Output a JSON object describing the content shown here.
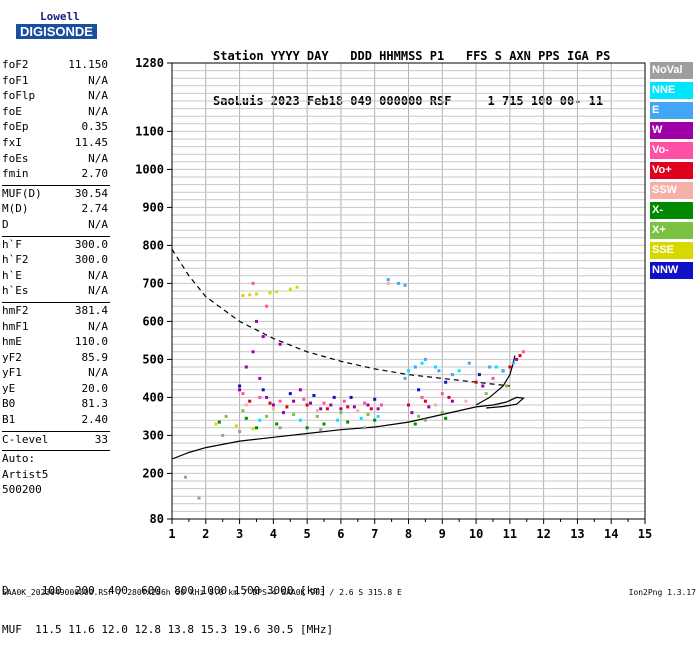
{
  "logo": {
    "maker": "Lowell",
    "product": "DIGISONDE"
  },
  "header": {
    "line1": "Station YYYY DAY   DDD HHMMSS P1   FFS S AXN PPS IGA PS",
    "line2": "SaoLuis 2023 Feb18 049 000000 RSF     1 715 100 00- 11"
  },
  "params_a": [
    {
      "k": "foF2",
      "v": "11.150"
    },
    {
      "k": "foF1",
      "v": "N/A"
    },
    {
      "k": "foFlp",
      "v": "N/A"
    },
    {
      "k": "foE",
      "v": "N/A"
    },
    {
      "k": "foEp",
      "v": "0.35"
    },
    {
      "k": "fxI",
      "v": "11.45"
    },
    {
      "k": "foEs",
      "v": "N/A"
    },
    {
      "k": "fmin",
      "v": "2.70"
    }
  ],
  "params_b": [
    {
      "k": "MUF(D)",
      "v": "30.54"
    },
    {
      "k": "M(D)",
      "v": "2.74"
    },
    {
      "k": "D",
      "v": "N/A"
    }
  ],
  "params_c": [
    {
      "k": "h`F",
      "v": "300.0"
    },
    {
      "k": "h`F2",
      "v": "300.0"
    },
    {
      "k": "h`E",
      "v": "N/A"
    },
    {
      "k": "h`Es",
      "v": "N/A"
    }
  ],
  "params_d": [
    {
      "k": "hmF2",
      "v": "381.4"
    },
    {
      "k": "hmF1",
      "v": "N/A"
    },
    {
      "k": "hmE",
      "v": "110.0"
    },
    {
      "k": "yF2",
      "v": "85.9"
    },
    {
      "k": "yF1",
      "v": "N/A"
    },
    {
      "k": "yE",
      "v": "20.0"
    },
    {
      "k": "B0",
      "v": "81.3"
    },
    {
      "k": "B1",
      "v": "2.40"
    }
  ],
  "params_e": [
    {
      "k": "C-level",
      "v": "33"
    }
  ],
  "autoscale": {
    "line1": "Auto:",
    "line2": "Artist5",
    "line3": "500200"
  },
  "legend": [
    {
      "label": "NoVal",
      "color": "#9e9e9e"
    },
    {
      "label": "NNE",
      "color": "#00e5ff"
    },
    {
      "label": "E",
      "color": "#42a5f5"
    },
    {
      "label": "W",
      "color": "#a000a8"
    },
    {
      "label": "Vo-",
      "color": "#ff4fa6"
    },
    {
      "label": "Vo+",
      "color": "#e0001b"
    },
    {
      "label": "SSW",
      "color": "#f4b1a8"
    },
    {
      "label": "X-",
      "color": "#008a00"
    },
    {
      "label": "X+",
      "color": "#7cc242"
    },
    {
      "label": "SSE",
      "color": "#d8d800"
    },
    {
      "label": "NNW",
      "color": "#1010c8"
    }
  ],
  "bottom": {
    "line1": "D     100  200  400  600  800 1000 1500 3000 [km]",
    "line2": "MUF  11.5 11.6 12.0 12.8 13.8 15.3 19.6 30.5 [MHz]"
  },
  "footer": "SAA0K_2023049000000.RSF / 280fx256h 50 kHz 5.0 km / DPS-4 SAA0K 903 / 2.6 S 315.8 E",
  "version": "Ion2Png 1.3.17",
  "chart_data": {
    "type": "scatter",
    "title": "",
    "xlabel": "",
    "ylabel": "",
    "xlim": [
      1,
      15
    ],
    "ylim": [
      80,
      1280
    ],
    "x_ticks": [
      1,
      2,
      3,
      4,
      5,
      6,
      7,
      8,
      9,
      10,
      11,
      12,
      13,
      14,
      15
    ],
    "y_ticks": [
      80,
      200,
      300,
      400,
      500,
      600,
      700,
      800,
      900,
      1000,
      1100,
      1280
    ],
    "grid": true,
    "series": [
      {
        "name": "X-",
        "color": "#008a00",
        "points": [
          [
            3.2,
            345
          ],
          [
            3.5,
            320
          ],
          [
            4.1,
            330
          ],
          [
            5.0,
            320
          ],
          [
            5.5,
            330
          ],
          [
            6.2,
            335
          ],
          [
            7.0,
            340
          ],
          [
            8.2,
            330
          ],
          [
            9.1,
            345
          ],
          [
            2.4,
            335
          ]
        ]
      },
      {
        "name": "X+",
        "color": "#7cc242",
        "points": [
          [
            3.1,
            365
          ],
          [
            3.8,
            350
          ],
          [
            4.6,
            355
          ],
          [
            5.3,
            350
          ],
          [
            6.0,
            360
          ],
          [
            6.8,
            355
          ],
          [
            8.3,
            350
          ],
          [
            9.0,
            360
          ],
          [
            10.3,
            410
          ],
          [
            10.9,
            430
          ],
          [
            2.6,
            350
          ]
        ]
      },
      {
        "name": "SSE",
        "color": "#d8d800",
        "points": [
          [
            3.1,
            668
          ],
          [
            3.3,
            670
          ],
          [
            3.5,
            672
          ],
          [
            3.9,
            675
          ],
          [
            4.1,
            678
          ],
          [
            4.5,
            685
          ],
          [
            4.7,
            690
          ],
          [
            2.3,
            330
          ],
          [
            2.9,
            325
          ],
          [
            3.4,
            318
          ]
        ]
      },
      {
        "name": "W",
        "color": "#a000a8",
        "points": [
          [
            3.0,
            420
          ],
          [
            3.2,
            480
          ],
          [
            3.4,
            520
          ],
          [
            3.6,
            450
          ],
          [
            3.8,
            400
          ],
          [
            4.0,
            380
          ],
          [
            4.3,
            360
          ],
          [
            4.6,
            390
          ],
          [
            4.8,
            420
          ],
          [
            5.1,
            385
          ],
          [
            5.4,
            370
          ],
          [
            5.7,
            380
          ],
          [
            6.0,
            370
          ],
          [
            6.4,
            375
          ],
          [
            6.8,
            380
          ],
          [
            7.1,
            370
          ],
          [
            8.1,
            360
          ],
          [
            8.6,
            375
          ],
          [
            9.3,
            390
          ],
          [
            10.2,
            430
          ],
          [
            10.8,
            470
          ],
          [
            11.2,
            500
          ],
          [
            3.5,
            600
          ],
          [
            3.7,
            560
          ],
          [
            4.2,
            540
          ]
        ]
      },
      {
        "name": "Vo+",
        "color": "#e0001b",
        "points": [
          [
            3.3,
            390
          ],
          [
            3.9,
            385
          ],
          [
            4.4,
            375
          ],
          [
            5.0,
            380
          ],
          [
            5.6,
            370
          ],
          [
            6.2,
            375
          ],
          [
            6.9,
            370
          ],
          [
            8.0,
            380
          ],
          [
            8.5,
            390
          ],
          [
            9.2,
            400
          ],
          [
            10.0,
            440
          ],
          [
            11.0,
            480
          ],
          [
            11.3,
            510
          ]
        ]
      },
      {
        "name": "Vo-",
        "color": "#ff4fa6",
        "points": [
          [
            3.1,
            410
          ],
          [
            3.6,
            400
          ],
          [
            4.2,
            390
          ],
          [
            4.9,
            395
          ],
          [
            5.5,
            385
          ],
          [
            6.1,
            390
          ],
          [
            6.7,
            385
          ],
          [
            7.2,
            380
          ],
          [
            8.4,
            400
          ],
          [
            9.0,
            410
          ],
          [
            10.5,
            450
          ],
          [
            11.4,
            520
          ],
          [
            3.4,
            700
          ],
          [
            3.8,
            640
          ]
        ]
      },
      {
        "name": "NNE",
        "color": "#00e5ff",
        "points": [
          [
            3.6,
            340
          ],
          [
            4.8,
            340
          ],
          [
            5.9,
            340
          ],
          [
            6.6,
            345
          ],
          [
            7.1,
            350
          ],
          [
            8.0,
            470
          ],
          [
            8.4,
            490
          ],
          [
            8.8,
            480
          ],
          [
            9.5,
            470
          ],
          [
            10.6,
            480
          ]
        ]
      },
      {
        "name": "E",
        "color": "#42a5f5",
        "points": [
          [
            7.9,
            450
          ],
          [
            8.2,
            480
          ],
          [
            8.5,
            500
          ],
          [
            8.9,
            470
          ],
          [
            9.3,
            460
          ],
          [
            9.8,
            490
          ],
          [
            10.4,
            480
          ],
          [
            10.8,
            470
          ],
          [
            11.1,
            490
          ],
          [
            7.4,
            710
          ],
          [
            7.7,
            700
          ],
          [
            7.9,
            695
          ]
        ]
      },
      {
        "name": "NNW",
        "color": "#1010c8",
        "points": [
          [
            3.0,
            430
          ],
          [
            3.7,
            420
          ],
          [
            4.5,
            410
          ],
          [
            5.2,
            405
          ],
          [
            5.8,
            400
          ],
          [
            6.3,
            400
          ],
          [
            7.0,
            395
          ],
          [
            8.3,
            420
          ],
          [
            9.1,
            440
          ],
          [
            10.1,
            460
          ]
        ]
      },
      {
        "name": "SSW",
        "color": "#f4b1a8",
        "points": [
          [
            3.2,
            380
          ],
          [
            4.0,
            370
          ],
          [
            5.3,
            365
          ],
          [
            6.5,
            365
          ],
          [
            7.4,
            700
          ],
          [
            8.8,
            380
          ],
          [
            9.7,
            390
          ]
        ]
      },
      {
        "name": "NoVal",
        "color": "#9e9e9e",
        "points": [
          [
            1.4,
            190
          ],
          [
            1.8,
            135
          ],
          [
            2.5,
            300
          ],
          [
            3.0,
            310
          ],
          [
            4.2,
            320
          ],
          [
            5.4,
            315
          ],
          [
            6.7,
            320
          ],
          [
            8.5,
            340
          ]
        ]
      }
    ],
    "curves": {
      "fitted_trace": {
        "style": "solid",
        "points": [
          [
            1.0,
            238
          ],
          [
            1.5,
            255
          ],
          [
            2,
            268
          ],
          [
            3,
            285
          ],
          [
            4,
            295
          ],
          [
            5,
            305
          ],
          [
            6,
            315
          ],
          [
            7,
            322
          ],
          [
            8,
            335
          ],
          [
            9,
            355
          ],
          [
            10,
            375
          ],
          [
            10.5,
            380
          ],
          [
            10.9,
            388
          ],
          [
            11.2,
            400
          ],
          [
            11.4,
            398
          ],
          [
            11.2,
            382
          ],
          [
            10.8,
            376
          ],
          [
            10.3,
            372
          ]
        ]
      },
      "f2_trace": {
        "style": "solid",
        "points": [
          [
            10.0,
            380
          ],
          [
            10.4,
            400
          ],
          [
            10.8,
            430
          ],
          [
            11.0,
            460
          ],
          [
            11.1,
            490
          ],
          [
            11.15,
            510
          ]
        ]
      },
      "muf_dashed": {
        "style": "dashed",
        "points": [
          [
            1.0,
            790
          ],
          [
            1.5,
            720
          ],
          [
            2,
            665
          ],
          [
            3,
            600
          ],
          [
            4,
            555
          ],
          [
            5,
            520
          ],
          [
            6,
            495
          ],
          [
            7,
            475
          ],
          [
            8,
            460
          ],
          [
            9,
            450
          ],
          [
            10,
            440
          ],
          [
            11,
            430
          ]
        ]
      }
    }
  }
}
